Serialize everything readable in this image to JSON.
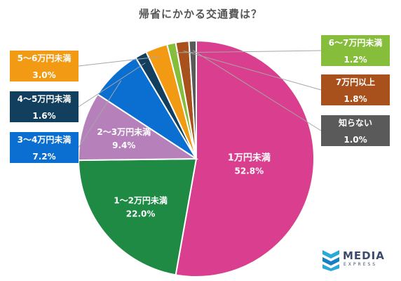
{
  "chart_data": {
    "type": "pie",
    "title": "帰省にかかる交通費は？",
    "slices": [
      {
        "label": "1万円未満",
        "value_text": "52.8%",
        "value": 52.8,
        "color": "#d93f8e"
      },
      {
        "label": "1〜2万円未満",
        "value_text": "22.0%",
        "value": 22.0,
        "color": "#1e8a44"
      },
      {
        "label": "2〜3万円未満",
        "value_text": "9.4%",
        "value": 9.4,
        "color": "#b681bb"
      },
      {
        "label": "3〜4万円未満",
        "value_text": "7.2%",
        "value": 7.2,
        "color": "#0a6fd0"
      },
      {
        "label": "4〜5万円未満",
        "value_text": "1.6%",
        "value": 1.6,
        "color": "#133f5f"
      },
      {
        "label": "5〜6万円未満",
        "value_text": "3.0%",
        "value": 3.0,
        "color": "#f39a14"
      },
      {
        "label": "6〜7万円未満",
        "value_text": "1.2%",
        "value": 1.2,
        "color": "#86bd3b"
      },
      {
        "label": "7万円以上",
        "value_text": "1.8%",
        "value": 1.8,
        "color": "#a9511c"
      },
      {
        "label": "知らない",
        "value_text": "1.0%",
        "value": 1.0,
        "color": "#5a5a5a"
      }
    ]
  },
  "logo": {
    "name": "MEDIA",
    "sub": "EXPRESS"
  }
}
